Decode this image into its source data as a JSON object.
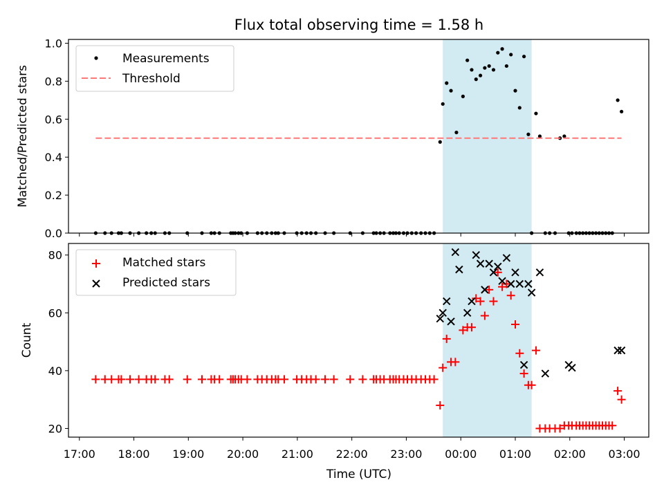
{
  "chart_data": [
    {
      "type": "scatter",
      "title": "Flux total observing time = 1.58 h",
      "ylabel": "Matched/Predicted stars",
      "xlabel": "",
      "ylim": [
        0,
        1.02
      ],
      "yticks": [
        0.0,
        0.2,
        0.4,
        0.6,
        0.8,
        1.0
      ],
      "ytick_labels": [
        "0.0",
        "0.2",
        "0.4",
        "0.6",
        "0.8",
        "1.0"
      ],
      "highlight_span": {
        "from_hours": 23.67,
        "to_hours": 25.3
      },
      "legend": {
        "position": "top-left",
        "measurements_label": "Measurements",
        "threshold_label": "Threshold"
      },
      "series": [
        {
          "name": "Measurements",
          "color": "#000000",
          "x_hours": [
            17.3,
            17.47,
            17.59,
            17.72,
            17.77,
            17.93,
            18.09,
            18.23,
            18.32,
            18.39,
            18.57,
            18.65,
            18.98,
            19.25,
            19.42,
            19.48,
            19.57,
            19.78,
            19.82,
            19.86,
            19.92,
            19.97,
            20.08,
            20.27,
            20.35,
            20.44,
            20.53,
            20.6,
            20.65,
            20.76,
            20.99,
            21.08,
            21.17,
            21.25,
            21.34,
            21.51,
            21.67,
            21.97,
            22.2,
            22.4,
            22.45,
            22.52,
            22.59,
            22.7,
            22.76,
            22.81,
            22.87,
            22.95,
            23.02,
            23.1,
            23.18,
            23.27,
            23.35,
            23.43,
            23.51,
            23.62,
            23.67,
            23.74,
            23.82,
            23.92,
            24.04,
            24.12,
            24.2,
            24.28,
            24.36,
            24.44,
            24.52,
            24.6,
            24.68,
            24.76,
            24.84,
            24.92,
            25.0,
            25.08,
            25.16,
            25.24,
            25.3,
            25.38,
            25.45,
            25.55,
            25.63,
            25.73,
            25.82,
            25.9,
            25.98,
            26.04,
            26.12,
            26.18,
            26.24,
            26.3,
            26.36,
            26.42,
            26.48,
            26.54,
            26.6,
            26.66,
            26.72,
            26.78,
            26.88,
            26.95
          ],
          "y": [
            0,
            0,
            0,
            0,
            0,
            0,
            0,
            0,
            0,
            0,
            0,
            0,
            0,
            0,
            0,
            0,
            0,
            0,
            0,
            0,
            0,
            0,
            0,
            0,
            0,
            0,
            0,
            0,
            0,
            0,
            0,
            0,
            0,
            0,
            0,
            0,
            0,
            0,
            0,
            0,
            0,
            0,
            0,
            0,
            0,
            0,
            0,
            0,
            0,
            0,
            0,
            0,
            0,
            0,
            0,
            0.48,
            0.68,
            0.79,
            0.75,
            0.53,
            0.72,
            0.91,
            0.86,
            0.81,
            0.83,
            0.87,
            0.88,
            0.86,
            0.95,
            0.97,
            0.88,
            0.94,
            0.75,
            0.66,
            0.93,
            0.52,
            0,
            0.63,
            0.51,
            0,
            0,
            0,
            0.5,
            0.51,
            0,
            0,
            0,
            0,
            0,
            0,
            0,
            0,
            0,
            0,
            0,
            0,
            0,
            0,
            0.7,
            0.64
          ]
        },
        {
          "name": "Threshold",
          "color": "#ff7777",
          "x_hours": [
            17.3,
            26.95
          ],
          "y": [
            0.5,
            0.5
          ]
        }
      ]
    },
    {
      "type": "scatter",
      "title": "",
      "ylabel": "Count",
      "xlabel": "Time (UTC)",
      "ylim": [
        17,
        84
      ],
      "yticks": [
        20,
        40,
        60,
        80
      ],
      "ytick_labels": [
        "20",
        "40",
        "60",
        "80"
      ],
      "xlim_hours": [
        16.8,
        27.45
      ],
      "xticks_hours": [
        17,
        18,
        19,
        20,
        21,
        22,
        23,
        24,
        25,
        26,
        27
      ],
      "xtick_labels": [
        "17:00",
        "18:00",
        "19:00",
        "20:00",
        "21:00",
        "22:00",
        "23:00",
        "00:00",
        "01:00",
        "02:00",
        "03:00"
      ],
      "highlight_span": {
        "from_hours": 23.67,
        "to_hours": 25.3
      },
      "legend": {
        "position": "top-left",
        "matched_label": "Matched stars",
        "predicted_label": "Predicted stars"
      },
      "series": [
        {
          "name": "Matched stars",
          "marker": "plus",
          "color": "#ff0000",
          "x_hours": [
            17.3,
            17.47,
            17.59,
            17.72,
            17.77,
            17.93,
            18.09,
            18.23,
            18.32,
            18.39,
            18.57,
            18.65,
            18.98,
            19.25,
            19.42,
            19.48,
            19.57,
            19.78,
            19.82,
            19.86,
            19.92,
            19.97,
            20.08,
            20.27,
            20.35,
            20.44,
            20.53,
            20.6,
            20.65,
            20.76,
            20.99,
            21.08,
            21.17,
            21.25,
            21.34,
            21.51,
            21.67,
            21.97,
            22.2,
            22.4,
            22.45,
            22.52,
            22.59,
            22.7,
            22.76,
            22.81,
            22.87,
            22.95,
            23.02,
            23.1,
            23.18,
            23.27,
            23.35,
            23.43,
            23.51,
            23.62,
            23.67,
            23.74,
            23.82,
            23.9,
            24.04,
            24.12,
            24.2,
            24.28,
            24.36,
            24.44,
            24.52,
            24.6,
            24.68,
            24.76,
            24.84,
            24.92,
            25.0,
            25.08,
            25.16,
            25.24,
            25.3,
            25.38,
            25.45,
            25.55,
            25.63,
            25.73,
            25.82,
            25.9,
            25.98,
            26.04,
            26.12,
            26.18,
            26.24,
            26.3,
            26.36,
            26.42,
            26.48,
            26.54,
            26.6,
            26.66,
            26.72,
            26.78,
            26.88,
            26.95
          ],
          "y": [
            37,
            37,
            37,
            37,
            37,
            37,
            37,
            37,
            37,
            37,
            37,
            37,
            37,
            37,
            37,
            37,
            37,
            37,
            37,
            37,
            37,
            37,
            37,
            37,
            37,
            37,
            37,
            37,
            37,
            37,
            37,
            37,
            37,
            37,
            37,
            37,
            37,
            37,
            37,
            37,
            37,
            37,
            37,
            37,
            37,
            37,
            37,
            37,
            37,
            37,
            37,
            37,
            37,
            37,
            37,
            28,
            41,
            51,
            43,
            43,
            54,
            55,
            55,
            65,
            64,
            59,
            68,
            64,
            74,
            69,
            70,
            66,
            56,
            46,
            39,
            35,
            35,
            47,
            20,
            20,
            20,
            20,
            20,
            21,
            21,
            21,
            21,
            21,
            21,
            21,
            21,
            21,
            21,
            21,
            21,
            21,
            21,
            21,
            33,
            30
          ]
        },
        {
          "name": "Predicted stars",
          "marker": "x",
          "color": "#000000",
          "x_hours": [
            23.62,
            23.67,
            23.74,
            23.82,
            23.9,
            23.97,
            24.12,
            24.2,
            24.28,
            24.36,
            24.44,
            24.52,
            24.6,
            24.68,
            24.76,
            24.84,
            24.92,
            25.0,
            25.08,
            25.16,
            25.24,
            25.3,
            25.45,
            25.55,
            25.98,
            26.04,
            26.88,
            26.95
          ],
          "y": [
            58,
            60,
            64,
            57,
            81,
            75,
            60,
            64,
            80,
            77,
            68,
            77,
            74,
            76,
            71,
            79,
            70,
            74,
            70,
            42,
            70,
            67,
            74,
            39,
            42,
            41,
            47,
            47
          ]
        }
      ]
    }
  ]
}
